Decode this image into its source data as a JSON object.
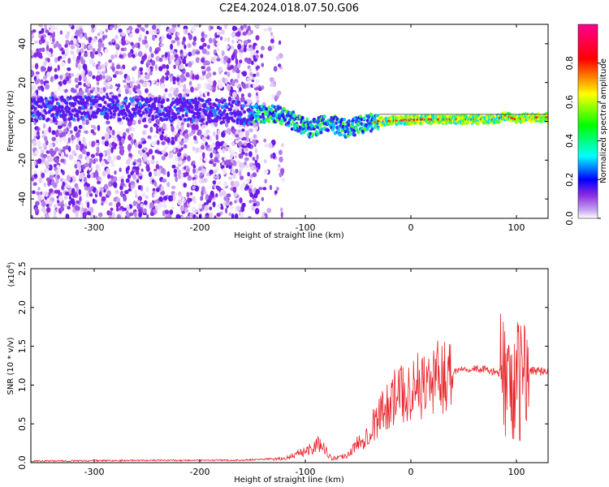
{
  "title": "C2E4.2024.018.07.50.G06",
  "chart_data": [
    {
      "type": "heatmap",
      "xlabel": "Height of straight line (km)",
      "ylabel": "Frequency (Hz)",
      "xlim": [
        -360,
        130
      ],
      "ylim": [
        -50,
        50
      ],
      "xticks": [
        -300,
        -200,
        -100,
        0,
        100
      ],
      "yticks": [
        -40,
        -20,
        0,
        20,
        40
      ],
      "colorbar": {
        "label": "Normalized spectral amplitude",
        "range": [
          0,
          1
        ],
        "ticks": [
          0.0,
          0.2,
          0.4,
          0.6,
          0.8
        ],
        "colors": [
          "#ffffff",
          "#8a2be2",
          "#0000ff",
          "#00ffff",
          "#00ff00",
          "#ffff00",
          "#ff0000",
          "#ff00a0"
        ]
      },
      "scatter_region": {
        "x": [
          -360,
          -145
        ],
        "y": [
          -50,
          50
        ]
      },
      "trace": [
        {
          "x": -360,
          "y": 6
        },
        {
          "x": -300,
          "y": 7
        },
        {
          "x": -250,
          "y": 6
        },
        {
          "x": -200,
          "y": 6
        },
        {
          "x": -150,
          "y": 4
        },
        {
          "x": -130,
          "y": 4
        },
        {
          "x": -110,
          "y": 0
        },
        {
          "x": -95,
          "y": -4
        },
        {
          "x": -80,
          "y": -1
        },
        {
          "x": -70,
          "y": -2
        },
        {
          "x": -60,
          "y": -4
        },
        {
          "x": -50,
          "y": -2
        },
        {
          "x": -40,
          "y": -1
        },
        {
          "x": -30,
          "y": 0
        },
        {
          "x": -10,
          "y": 0.5
        },
        {
          "x": 10,
          "y": 1
        },
        {
          "x": 40,
          "y": 1
        },
        {
          "x": 80,
          "y": 1
        },
        {
          "x": 90,
          "y": 3
        },
        {
          "x": 100,
          "y": 1
        },
        {
          "x": 110,
          "y": 2
        },
        {
          "x": 130,
          "y": 2
        }
      ]
    },
    {
      "type": "line",
      "xlabel": "Height of straight line (km)",
      "ylabel": "SNR (10 * v/v)",
      "yscale_label": "(x10",
      "yscale_exp": "4",
      "yscale_close": ")",
      "xlim": [
        -360,
        130
      ],
      "ylim": [
        0,
        2.5
      ],
      "xticks": [
        -300,
        -200,
        -100,
        0,
        100
      ],
      "yticks": [
        0.0,
        0.5,
        1.0,
        1.5,
        2.0,
        2.5
      ],
      "color": "#e8242a",
      "series": [
        {
          "envelope": [
            {
              "x": -360,
              "y": 0.01
            },
            {
              "x": -250,
              "y": 0.02
            },
            {
              "x": -160,
              "y": 0.02
            },
            {
              "x": -120,
              "y": 0.05
            },
            {
              "x": -100,
              "y": 0.15
            },
            {
              "x": -85,
              "y": 0.25
            },
            {
              "x": -75,
              "y": 0.05
            },
            {
              "x": -60,
              "y": 0.1
            },
            {
              "x": -50,
              "y": 0.25
            },
            {
              "x": -40,
              "y": 0.4
            },
            {
              "x": -30,
              "y": 0.6
            },
            {
              "x": -20,
              "y": 0.8
            },
            {
              "x": 0,
              "y": 0.95
            },
            {
              "x": 20,
              "y": 1.05
            },
            {
              "x": 35,
              "y": 1.15
            },
            {
              "x": 50,
              "y": 1.22
            },
            {
              "x": 70,
              "y": 1.2
            },
            {
              "x": 85,
              "y": 1.15
            },
            {
              "x": 95,
              "y": 1.1
            },
            {
              "x": 100,
              "y": 1.0
            },
            {
              "x": 108,
              "y": 1.1
            },
            {
              "x": 115,
              "y": 1.2
            },
            {
              "x": 130,
              "y": 1.15
            }
          ]
        }
      ]
    }
  ]
}
